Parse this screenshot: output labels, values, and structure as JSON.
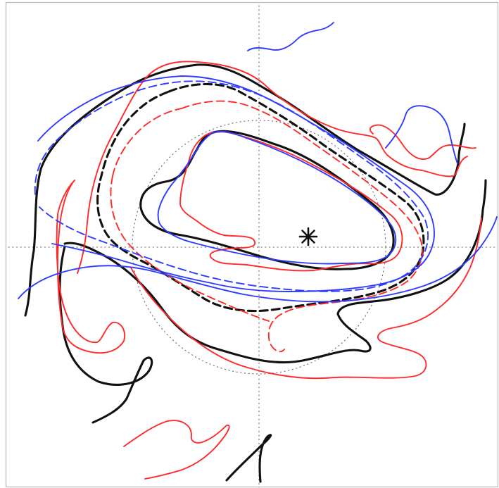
{
  "colors": {
    "black": "#111111",
    "red": "#ff2a2a",
    "blue": "#2f3cff",
    "grid": "#666666",
    "frame": "#b9b9b9"
  },
  "marker": {
    "icon": "asterisk-marker-icon"
  },
  "contours": [
    {
      "name": "black-solid-inner-contour",
      "color": "black",
      "style": "solid",
      "width": "thick"
    },
    {
      "name": "black-solid-outer-contour",
      "color": "black",
      "style": "solid",
      "width": "thick"
    },
    {
      "name": "black-solid-tail-contour",
      "color": "black",
      "style": "solid",
      "width": "thick"
    },
    {
      "name": "black-solid-bottom-hook-contour",
      "color": "black",
      "style": "solid",
      "width": "thick"
    },
    {
      "name": "black-dashed-contour",
      "color": "black",
      "style": "dashed",
      "width": "thick"
    },
    {
      "name": "red-solid-inner-contour",
      "color": "red",
      "style": "solid",
      "width": "thin"
    },
    {
      "name": "red-solid-outer-contour",
      "color": "red",
      "style": "solid",
      "width": "thin"
    },
    {
      "name": "red-solid-lower-contour",
      "color": "red",
      "style": "solid",
      "width": "thin"
    },
    {
      "name": "red-solid-left-lobe-contour",
      "color": "red",
      "style": "solid",
      "width": "thin"
    },
    {
      "name": "red-solid-bottom-squiggle-contour",
      "color": "red",
      "style": "solid",
      "width": "thin"
    },
    {
      "name": "red-dashed-contour",
      "color": "red",
      "style": "dashed",
      "width": "thin"
    },
    {
      "name": "blue-solid-inner-contour",
      "color": "blue",
      "style": "solid",
      "width": "thin"
    },
    {
      "name": "blue-solid-outer-contour",
      "color": "blue",
      "style": "solid",
      "width": "thin"
    },
    {
      "name": "blue-solid-top-squiggle-contour",
      "color": "blue",
      "style": "solid",
      "width": "thin"
    },
    {
      "name": "blue-solid-lower-contour",
      "color": "blue",
      "style": "solid",
      "width": "thin"
    },
    {
      "name": "blue-dashed-contour",
      "color": "blue",
      "style": "dashed",
      "width": "thin"
    }
  ]
}
